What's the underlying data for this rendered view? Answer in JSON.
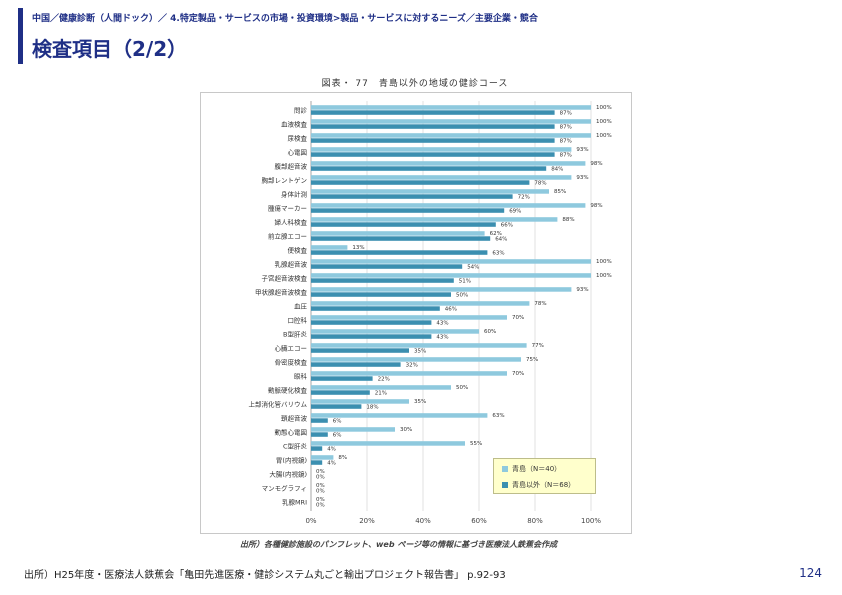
{
  "header": {
    "breadcrumb": "中国／健康診断（人間ドック）／ 4.特定製品・サービスの市場・投資環境>製品・サービスに対するニーズ／主要企業・競合",
    "title": "検査項目（2/2）"
  },
  "figure": {
    "title": "図表・ 77　青島以外の地域の健診コース",
    "source_note": "出所）各種健診施設のパンフレット、web ページ等の情報に基づき医療法人鉄蕉会作成"
  },
  "footer": {
    "source": "出所）H25年度・医療法人鉄蕉会「亀田先進医療・健診システム丸ごと輸出プロジェクト報告書」 p.92-93",
    "page_number": "124"
  },
  "colors": {
    "accent": "#1f2f86",
    "series1": "#8ec9de",
    "series2": "#3b8fb0",
    "legend_bg": "#ffffcc"
  },
  "chart_data": {
    "type": "bar",
    "orientation": "horizontal",
    "categories": [
      "問診",
      "血液検査",
      "尿検査",
      "心電図",
      "腹部超音波",
      "胸部レントゲン",
      "身体計測",
      "腫瘍マーカー",
      "婦人科検査",
      "前立腺エコー",
      "便検査",
      "乳腺超音波",
      "子宮超音波検査",
      "甲状腺超音波検査",
      "血圧",
      "口腔科",
      "B型肝炎",
      "心臓エコー",
      "骨密度検査",
      "眼科",
      "動脈硬化検査",
      "上部消化管バリウム",
      "頚超音波",
      "動態心電図",
      "C型肝炎",
      "胃(内視鏡)",
      "大腸(内視鏡)",
      "マンモグラフィ",
      "乳腺MRI"
    ],
    "series": [
      {
        "name": "青島（N＝40）",
        "values": [
          100,
          100,
          100,
          93,
          98,
          93,
          85,
          98,
          88,
          62,
          13,
          100,
          100,
          93,
          78,
          70,
          60,
          77,
          75,
          70,
          50,
          35,
          63,
          30,
          55,
          8,
          0,
          0,
          0
        ],
        "value_labels": [
          "100%",
          "100%",
          "100%",
          "93%",
          "98%",
          "93%",
          "85%",
          "98%",
          "88%",
          "62%",
          "13%",
          "100%",
          "100%",
          "93%",
          "78%",
          "70%",
          "60%",
          "77%",
          "75%",
          "70%",
          "50%",
          "35%",
          "63%",
          "30%",
          "55%",
          "8%",
          "0%",
          "0%",
          "0%"
        ]
      },
      {
        "name": "青島以外（N＝68）",
        "values": [
          87,
          87,
          87,
          87,
          84,
          78,
          72,
          69,
          66,
          64,
          63,
          54,
          51,
          50,
          46,
          43,
          43,
          35,
          32,
          22,
          21,
          18,
          6,
          6,
          4,
          4,
          0,
          0,
          0
        ],
        "value_labels": [
          "87%",
          "87%",
          "87%",
          "87%",
          "84%",
          "78%",
          "72%",
          "69%",
          "66%",
          "64%",
          "63%",
          "54%",
          "51%",
          "50%",
          "46%",
          "43%",
          "43%",
          "35%",
          "32%",
          "22%",
          "21%",
          "18%",
          "6%",
          "6%",
          "4%",
          "4%",
          "0%",
          "0%",
          "0%"
        ]
      }
    ],
    "x_ticks": [
      "0%",
      "20%",
      "40%",
      "60%",
      "80%",
      "100%"
    ],
    "xlim": [
      0,
      100
    ],
    "legend_position": "bottom-right",
    "grid": true
  }
}
